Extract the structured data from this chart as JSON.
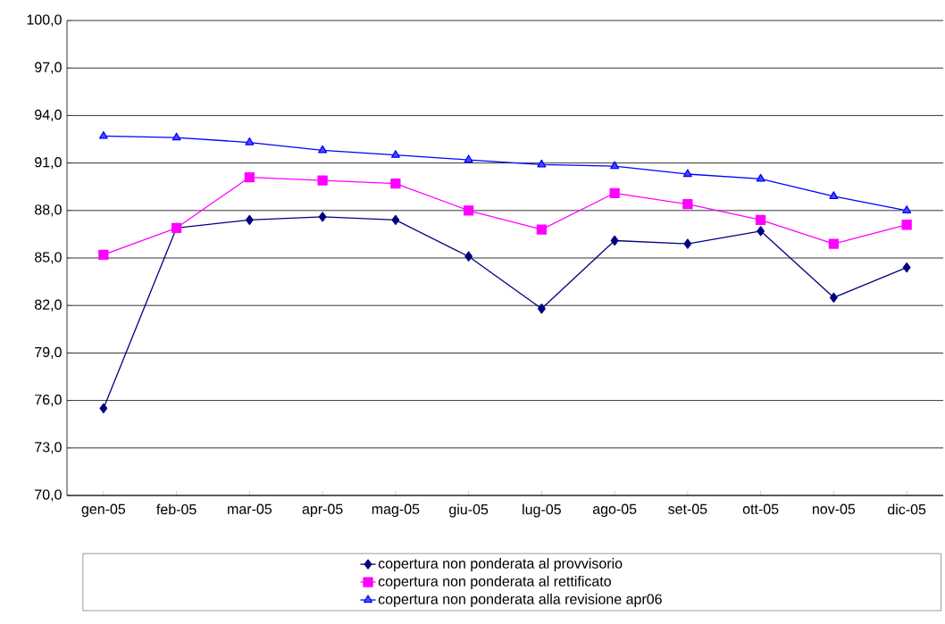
{
  "chart_data": {
    "type": "line",
    "categories": [
      "gen-05",
      "feb-05",
      "mar-05",
      "apr-05",
      "mag-05",
      "giu-05",
      "lug-05",
      "ago-05",
      "set-05",
      "ott-05",
      "nov-05",
      "dic-05"
    ],
    "series": [
      {
        "name": "copertura non ponderata al provvisorio",
        "color": "#000080",
        "marker": "diamond",
        "values": [
          75.5,
          86.9,
          87.4,
          87.6,
          87.4,
          85.1,
          81.8,
          86.1,
          85.9,
          86.7,
          82.5,
          84.4
        ]
      },
      {
        "name": "copertura non ponderata al rettificato",
        "color": "#ff00ff",
        "marker": "square",
        "values": [
          85.2,
          86.9,
          90.1,
          89.9,
          89.7,
          88.0,
          86.8,
          89.1,
          88.4,
          87.4,
          85.9,
          87.1
        ]
      },
      {
        "name": "copertura non ponderata alla revisione apr06",
        "color": "#0000ff",
        "marker": "triangle",
        "values": [
          92.7,
          92.6,
          92.3,
          91.8,
          91.5,
          91.2,
          90.9,
          90.8,
          90.3,
          90.0,
          88.9,
          88.0
        ]
      }
    ],
    "ylim": [
      70,
      100
    ],
    "yticks": [
      {
        "value": 70,
        "label": "70,0"
      },
      {
        "value": 73,
        "label": "73,0"
      },
      {
        "value": 76,
        "label": "76,0"
      },
      {
        "value": 79,
        "label": "79,0"
      },
      {
        "value": 82,
        "label": "82,0"
      },
      {
        "value": 85,
        "label": "85,0"
      },
      {
        "value": 88,
        "label": "88,0"
      },
      {
        "value": 91,
        "label": "91,0"
      },
      {
        "value": 94,
        "label": "94,0"
      },
      {
        "value": 97,
        "label": "97,0"
      },
      {
        "value": 100,
        "label": "100,0"
      }
    ],
    "grid": "y",
    "legend": "bottom",
    "line_style": "solid"
  }
}
